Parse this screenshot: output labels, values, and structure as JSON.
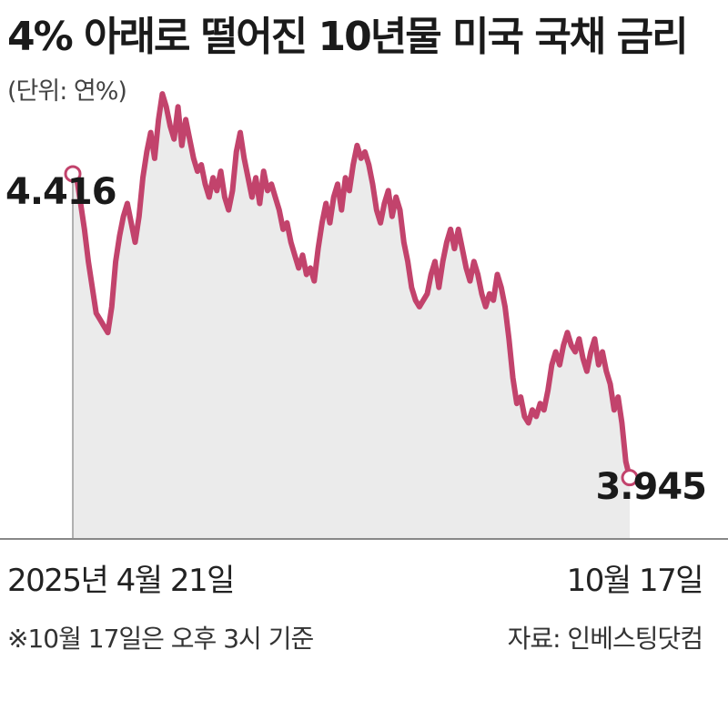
{
  "chart_data": {
    "type": "area",
    "title": "4% 아래로 떨어진 10년물 미국 국채 금리",
    "unit_label": "(단위: 연%)",
    "x_start_label": "2025년 4월 21일",
    "x_end_label": "10월 17일",
    "start_value_label": "4.416",
    "end_value_label": "3.945",
    "note": "※10월 17일은 오후 3시 기준",
    "source": "자료: 인베스팅닷컴",
    "ylim": [
      3.85,
      4.55
    ],
    "series": [
      {
        "values": [
          4.416,
          4.41,
          4.37,
          4.33,
          4.28,
          4.24,
          4.2,
          4.19,
          4.18,
          4.17,
          4.21,
          4.28,
          4.32,
          4.35,
          4.37,
          4.34,
          4.31,
          4.35,
          4.41,
          4.45,
          4.48,
          4.44,
          4.5,
          4.54,
          4.52,
          4.49,
          4.47,
          4.52,
          4.46,
          4.5,
          4.47,
          4.44,
          4.42,
          4.43,
          4.4,
          4.38,
          4.41,
          4.39,
          4.42,
          4.38,
          4.36,
          4.39,
          4.45,
          4.48,
          4.44,
          4.41,
          4.38,
          4.41,
          4.37,
          4.42,
          4.39,
          4.4,
          4.38,
          4.36,
          4.33,
          4.34,
          4.31,
          4.29,
          4.27,
          4.29,
          4.26,
          4.27,
          4.25,
          4.3,
          4.34,
          4.37,
          4.34,
          4.38,
          4.4,
          4.36,
          4.41,
          4.39,
          4.43,
          4.46,
          4.44,
          4.45,
          4.43,
          4.4,
          4.36,
          4.34,
          4.37,
          4.39,
          4.35,
          4.38,
          4.36,
          4.31,
          4.28,
          4.24,
          4.22,
          4.21,
          4.22,
          4.23,
          4.26,
          4.28,
          4.24,
          4.28,
          4.31,
          4.33,
          4.3,
          4.33,
          4.3,
          4.27,
          4.25,
          4.28,
          4.26,
          4.23,
          4.21,
          4.23,
          4.22,
          4.26,
          4.24,
          4.21,
          4.16,
          4.1,
          4.06,
          4.07,
          4.04,
          4.03,
          4.05,
          4.04,
          4.06,
          4.05,
          4.08,
          4.12,
          4.14,
          4.12,
          4.15,
          4.17,
          4.15,
          4.14,
          4.16,
          4.13,
          4.11,
          4.14,
          4.16,
          4.12,
          4.14,
          4.11,
          4.09,
          4.05,
          4.07,
          4.03,
          3.97,
          3.945
        ]
      }
    ],
    "colors": {
      "line": "#c2436c",
      "area": "#ebebeb",
      "axis": "#999999"
    },
    "grid": false
  }
}
